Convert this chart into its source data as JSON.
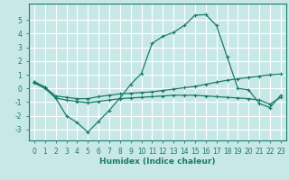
{
  "xlabel": "Humidex (Indice chaleur)",
  "background_color": "#c8e8e8",
  "grid_color": "#ffffff",
  "line_color": "#1a7a6a",
  "xlim": [
    -0.5,
    23.5
  ],
  "ylim": [
    -3.8,
    6.2
  ],
  "yticks": [
    -3,
    -2,
    -1,
    0,
    1,
    2,
    3,
    4,
    5
  ],
  "xticks": [
    0,
    1,
    2,
    3,
    4,
    5,
    6,
    7,
    8,
    9,
    10,
    11,
    12,
    13,
    14,
    15,
    16,
    17,
    18,
    19,
    20,
    21,
    22,
    23
  ],
  "series1_x": [
    0,
    1,
    2,
    3,
    4,
    5,
    6,
    7,
    8,
    9,
    10,
    11,
    12,
    13,
    14,
    15,
    16,
    17,
    18,
    19,
    20,
    21,
    22,
    23
  ],
  "series1_y": [
    0.5,
    0.1,
    -0.7,
    -2.0,
    -2.5,
    -3.2,
    -2.4,
    -1.6,
    -0.7,
    0.3,
    1.1,
    3.3,
    3.8,
    4.1,
    4.6,
    5.35,
    5.4,
    4.6,
    2.3,
    0.0,
    -0.1,
    -1.1,
    -1.4,
    -0.5
  ],
  "series2_x": [
    0,
    1,
    2,
    3,
    4,
    5,
    6,
    7,
    8,
    9,
    10,
    11,
    12,
    13,
    14,
    15,
    16,
    17,
    18,
    19,
    20,
    21,
    22,
    23
  ],
  "series2_y": [
    0.45,
    0.05,
    -0.55,
    -0.65,
    -0.75,
    -0.75,
    -0.6,
    -0.5,
    -0.4,
    -0.35,
    -0.3,
    -0.25,
    -0.15,
    -0.05,
    0.05,
    0.15,
    0.3,
    0.45,
    0.6,
    0.7,
    0.8,
    0.9,
    1.0,
    1.05
  ],
  "series3_x": [
    0,
    1,
    2,
    3,
    4,
    5,
    6,
    7,
    8,
    9,
    10,
    11,
    12,
    13,
    14,
    15,
    16,
    17,
    18,
    19,
    20,
    21,
    22,
    23
  ],
  "series3_y": [
    0.4,
    0.0,
    -0.7,
    -0.85,
    -0.95,
    -1.05,
    -0.95,
    -0.85,
    -0.75,
    -0.7,
    -0.65,
    -0.6,
    -0.55,
    -0.5,
    -0.5,
    -0.5,
    -0.55,
    -0.6,
    -0.65,
    -0.7,
    -0.75,
    -0.85,
    -1.15,
    -0.65
  ]
}
